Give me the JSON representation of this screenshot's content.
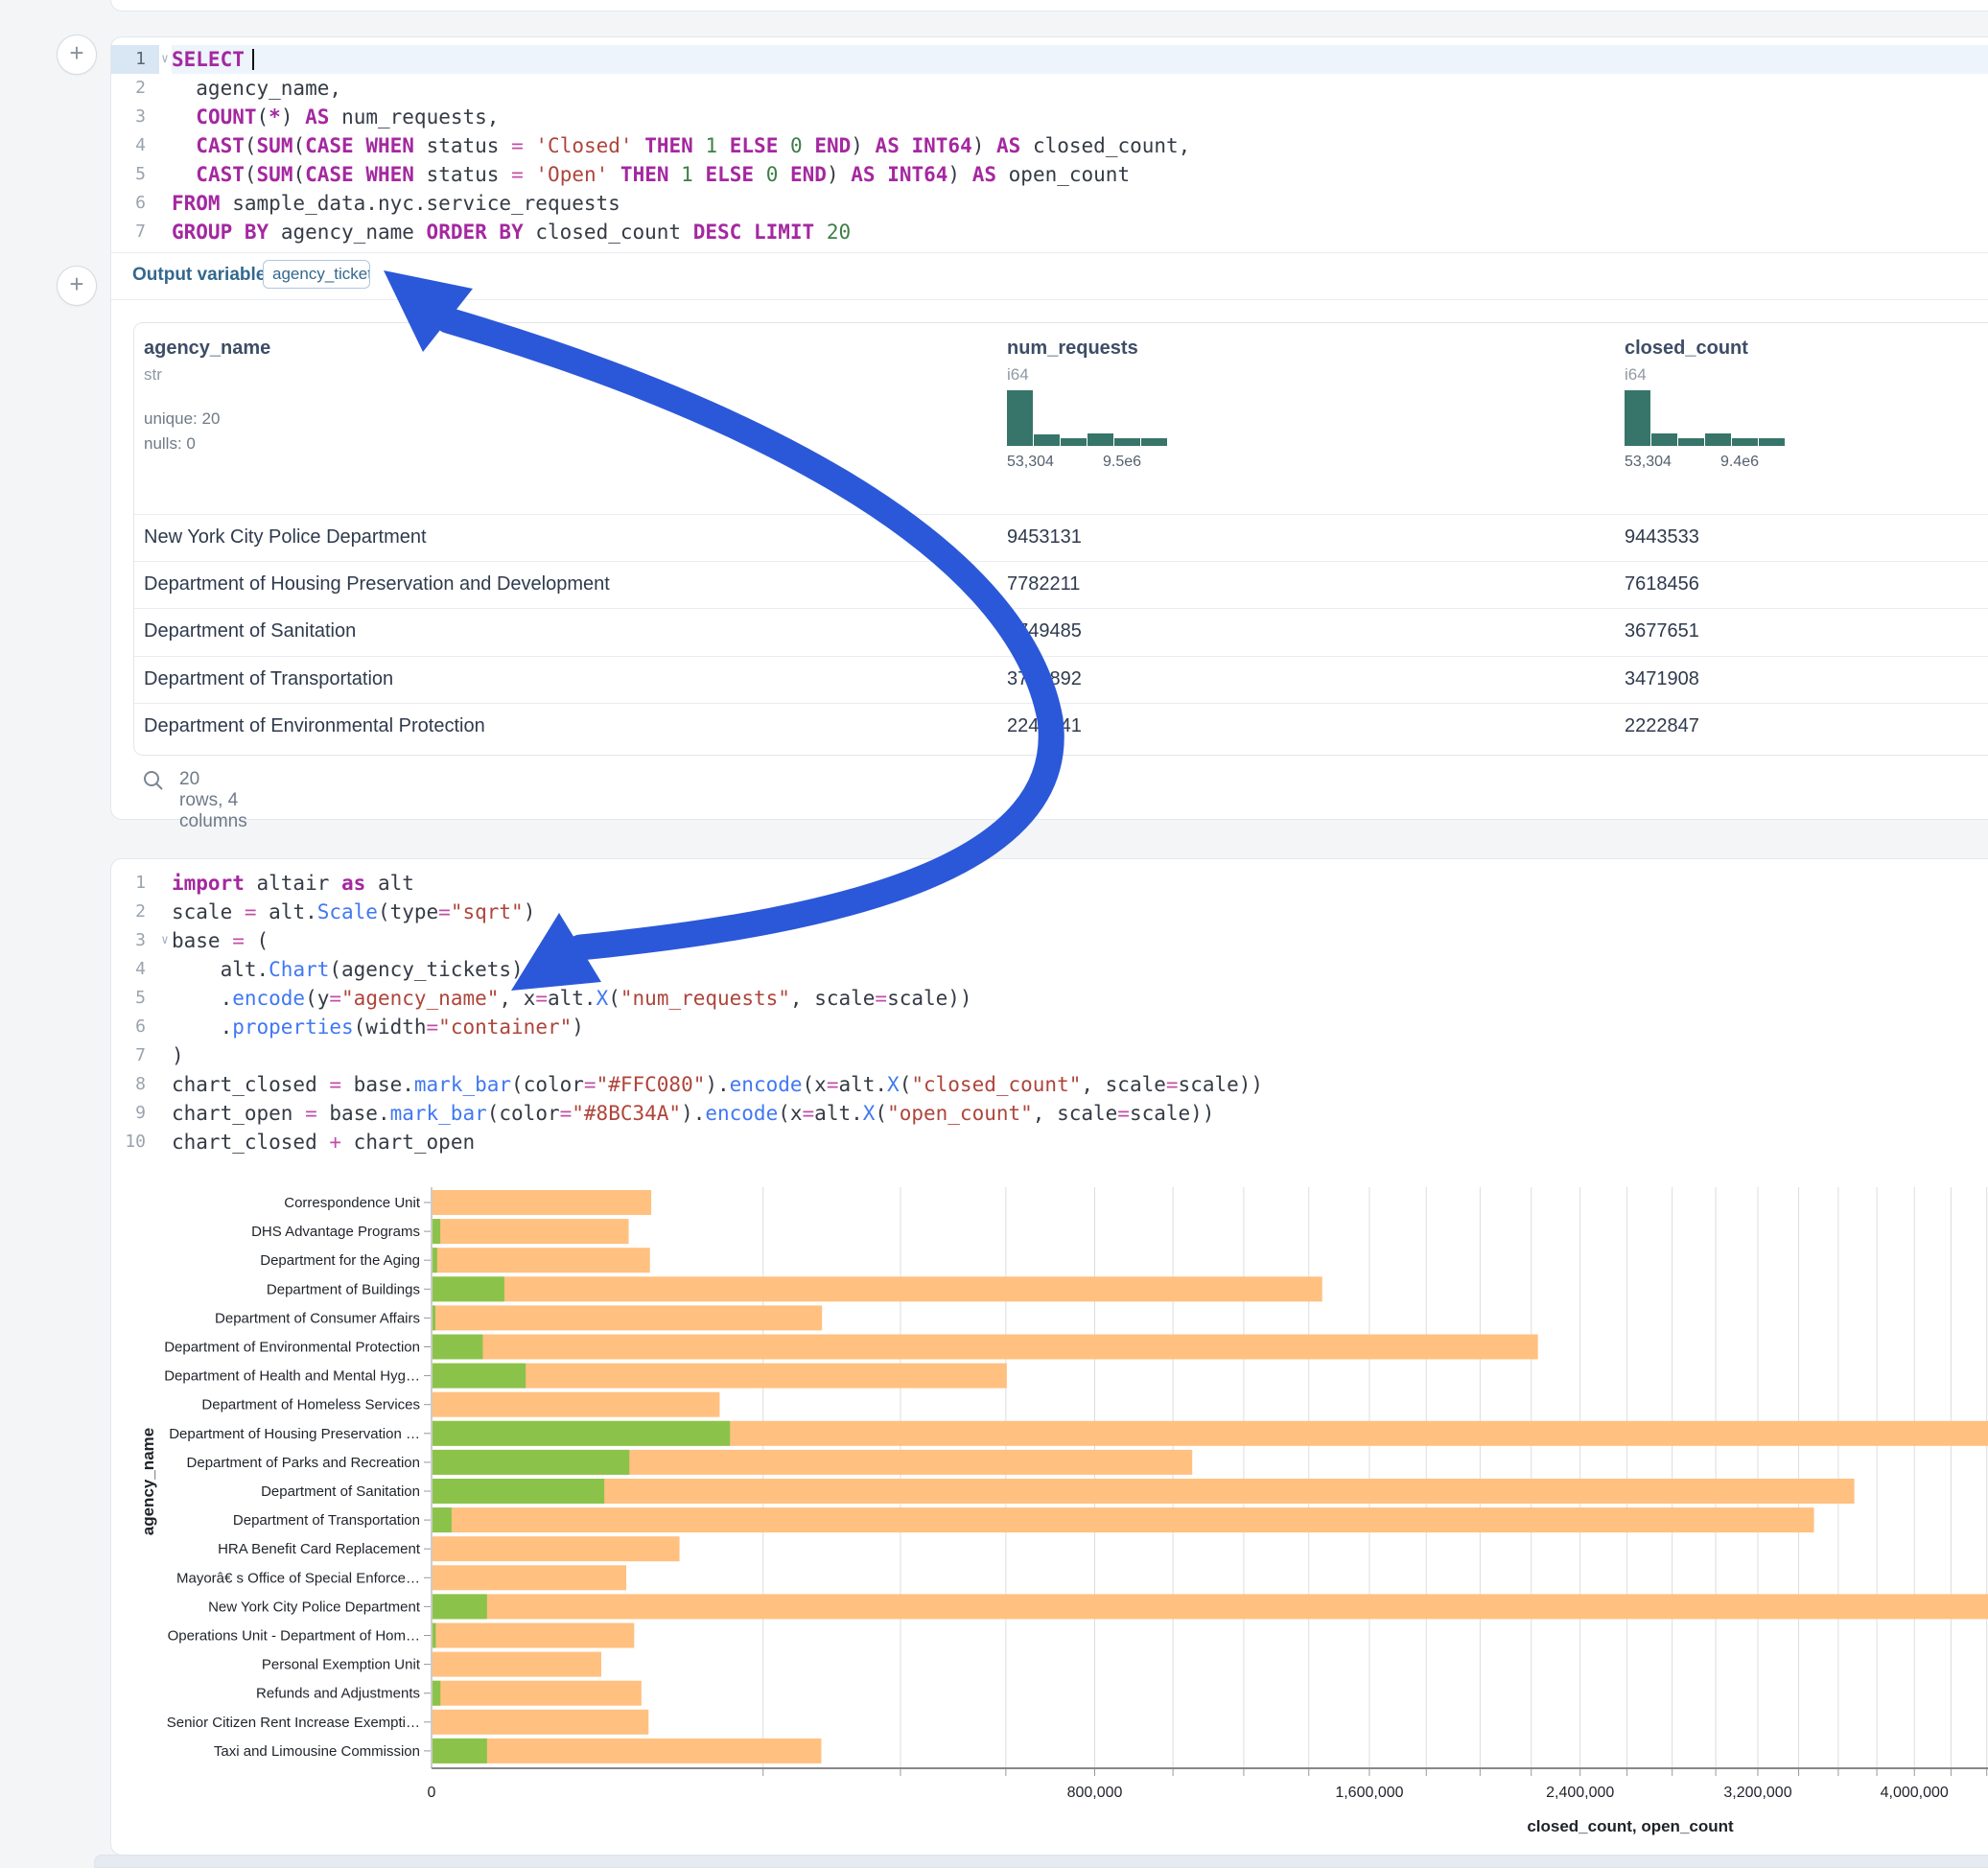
{
  "sql_cell": {
    "add_cell_plus": "+",
    "fold_chevron": "∨",
    "lines": [
      {
        "n": "1",
        "fold": true,
        "active": true,
        "cursor": true,
        "tokens": [
          [
            "kw",
            "SELECT"
          ]
        ]
      },
      {
        "n": "2",
        "tokens": [
          [
            "id",
            "  agency_name,"
          ]
        ]
      },
      {
        "n": "3",
        "tokens": [
          [
            "id",
            "  "
          ],
          [
            "kw",
            "COUNT"
          ],
          [
            "id",
            "("
          ],
          [
            "kw",
            "*"
          ],
          [
            "id",
            ") "
          ],
          [
            "kw",
            "AS"
          ],
          [
            "id",
            " num_requests,"
          ]
        ]
      },
      {
        "n": "4",
        "tokens": [
          [
            "id",
            "  "
          ],
          [
            "kw",
            "CAST"
          ],
          [
            "id",
            "("
          ],
          [
            "kw",
            "SUM"
          ],
          [
            "id",
            "("
          ],
          [
            "kw",
            "CASE"
          ],
          [
            "id",
            " "
          ],
          [
            "kw",
            "WHEN"
          ],
          [
            "id",
            " status "
          ],
          [
            "op",
            "="
          ],
          [
            "id",
            " "
          ],
          [
            "str",
            "'Closed'"
          ],
          [
            "id",
            " "
          ],
          [
            "kw",
            "THEN"
          ],
          [
            "id",
            " "
          ],
          [
            "num",
            "1"
          ],
          [
            "id",
            " "
          ],
          [
            "kw",
            "ELSE"
          ],
          [
            "id",
            " "
          ],
          [
            "num",
            "0"
          ],
          [
            "id",
            " "
          ],
          [
            "kw",
            "END"
          ],
          [
            "id",
            ") "
          ],
          [
            "kw",
            "AS"
          ],
          [
            "id",
            " "
          ],
          [
            "kw",
            "INT64"
          ],
          [
            "id",
            ") "
          ],
          [
            "kw",
            "AS"
          ],
          [
            "id",
            " closed_count,"
          ]
        ]
      },
      {
        "n": "5",
        "tokens": [
          [
            "id",
            "  "
          ],
          [
            "kw",
            "CAST"
          ],
          [
            "id",
            "("
          ],
          [
            "kw",
            "SUM"
          ],
          [
            "id",
            "("
          ],
          [
            "kw",
            "CASE"
          ],
          [
            "id",
            " "
          ],
          [
            "kw",
            "WHEN"
          ],
          [
            "id",
            " status "
          ],
          [
            "op",
            "="
          ],
          [
            "id",
            " "
          ],
          [
            "str",
            "'Open'"
          ],
          [
            "id",
            " "
          ],
          [
            "kw",
            "THEN"
          ],
          [
            "id",
            " "
          ],
          [
            "num",
            "1"
          ],
          [
            "id",
            " "
          ],
          [
            "kw",
            "ELSE"
          ],
          [
            "id",
            " "
          ],
          [
            "num",
            "0"
          ],
          [
            "id",
            " "
          ],
          [
            "kw",
            "END"
          ],
          [
            "id",
            ") "
          ],
          [
            "kw",
            "AS"
          ],
          [
            "id",
            " "
          ],
          [
            "kw",
            "INT64"
          ],
          [
            "id",
            ") "
          ],
          [
            "kw",
            "AS"
          ],
          [
            "id",
            " open_count"
          ]
        ]
      },
      {
        "n": "6",
        "tokens": [
          [
            "kw",
            "FROM"
          ],
          [
            "id",
            " sample_data.nyc.service_requests"
          ]
        ]
      },
      {
        "n": "7",
        "tokens": [
          [
            "kw",
            "GROUP"
          ],
          [
            "id",
            " "
          ],
          [
            "kw",
            "BY"
          ],
          [
            "id",
            " agency_name "
          ],
          [
            "kw",
            "ORDER"
          ],
          [
            "id",
            " "
          ],
          [
            "kw",
            "BY"
          ],
          [
            "id",
            " closed_count "
          ],
          [
            "kw",
            "DESC"
          ],
          [
            "id",
            " "
          ],
          [
            "kw",
            "LIMIT"
          ],
          [
            "id",
            " "
          ],
          [
            "num",
            "20"
          ]
        ]
      }
    ],
    "output_variable_label": "Output variable:",
    "output_variable_value": "agency_tickets"
  },
  "dataframe": {
    "columns": [
      {
        "name": "agency_name",
        "dtype": "str",
        "stats": [
          "unique: 20",
          "nulls: 0"
        ]
      },
      {
        "name": "num_requests",
        "dtype": "i64",
        "hist": {
          "bins": [
            1,
            0.21,
            0.14,
            0.23,
            0.14,
            0.14
          ],
          "min_label": "53,304",
          "max_label": "9.5e6"
        }
      },
      {
        "name": "closed_count",
        "dtype": "i64",
        "hist": {
          "bins": [
            1,
            0.22,
            0.13,
            0.22,
            0.13,
            0.13
          ],
          "min_label": "53,304",
          "max_label": "9.4e6"
        }
      }
    ],
    "rows": [
      [
        "New York City Police Department",
        "9453131",
        "9443533"
      ],
      [
        "Department of Housing Preservation and Development",
        "7782211",
        "7618456"
      ],
      [
        "Department of Sanitation",
        "3749485",
        "3677651"
      ],
      [
        "Department of Transportation",
        "3774892",
        "3471908"
      ],
      [
        "Department of Environmental Protection",
        "2240041",
        "2222847"
      ]
    ],
    "footer": "20 rows, 4 columns"
  },
  "python_cell": {
    "lines": [
      {
        "n": "1",
        "tokens": [
          [
            "kw",
            "import"
          ],
          [
            "id",
            " altair "
          ],
          [
            "kw",
            "as"
          ],
          [
            "id",
            " alt"
          ]
        ]
      },
      {
        "n": "2",
        "tokens": [
          [
            "id",
            "scale "
          ],
          [
            "op",
            "="
          ],
          [
            "id",
            " alt."
          ],
          [
            "fn",
            "Scale"
          ],
          [
            "id",
            "(type"
          ],
          [
            "op",
            "="
          ],
          [
            "str",
            "\"sqrt\""
          ],
          [
            "id",
            ")"
          ]
        ]
      },
      {
        "n": "3",
        "fold": true,
        "tokens": [
          [
            "id",
            "base "
          ],
          [
            "op",
            "="
          ],
          [
            "id",
            " ("
          ]
        ]
      },
      {
        "n": "4",
        "tokens": [
          [
            "id",
            "    alt."
          ],
          [
            "fn",
            "Chart"
          ],
          [
            "id",
            "(agency_tickets)"
          ]
        ]
      },
      {
        "n": "5",
        "tokens": [
          [
            "id",
            "    ."
          ],
          [
            "fn",
            "encode"
          ],
          [
            "id",
            "(y"
          ],
          [
            "op",
            "="
          ],
          [
            "str",
            "\"agency_name\""
          ],
          [
            "id",
            ", x"
          ],
          [
            "op",
            "="
          ],
          [
            "id",
            "alt."
          ],
          [
            "fn",
            "X"
          ],
          [
            "id",
            "("
          ],
          [
            "str",
            "\"num_requests\""
          ],
          [
            "id",
            ", scale"
          ],
          [
            "op",
            "="
          ],
          [
            "id",
            "scale))"
          ]
        ]
      },
      {
        "n": "6",
        "tokens": [
          [
            "id",
            "    ."
          ],
          [
            "fn",
            "properties"
          ],
          [
            "id",
            "(width"
          ],
          [
            "op",
            "="
          ],
          [
            "str",
            "\"container\""
          ],
          [
            "id",
            ")"
          ]
        ]
      },
      {
        "n": "7",
        "tokens": [
          [
            "id",
            ")"
          ]
        ]
      },
      {
        "n": "8",
        "tokens": [
          [
            "id",
            "chart_closed "
          ],
          [
            "op",
            "="
          ],
          [
            "id",
            " base."
          ],
          [
            "fn",
            "mark_bar"
          ],
          [
            "id",
            "(color"
          ],
          [
            "op",
            "="
          ],
          [
            "str",
            "\"#FFC080\""
          ],
          [
            "id",
            ")."
          ],
          [
            "fn",
            "encode"
          ],
          [
            "id",
            "(x"
          ],
          [
            "op",
            "="
          ],
          [
            "id",
            "alt."
          ],
          [
            "fn",
            "X"
          ],
          [
            "id",
            "("
          ],
          [
            "str",
            "\"closed_count\""
          ],
          [
            "id",
            ", scale"
          ],
          [
            "op",
            "="
          ],
          [
            "id",
            "scale))"
          ]
        ]
      },
      {
        "n": "9",
        "tokens": [
          [
            "id",
            "chart_open "
          ],
          [
            "op",
            "="
          ],
          [
            "id",
            " base."
          ],
          [
            "fn",
            "mark_bar"
          ],
          [
            "id",
            "(color"
          ],
          [
            "op",
            "="
          ],
          [
            "str",
            "\"#8BC34A\""
          ],
          [
            "id",
            ")."
          ],
          [
            "fn",
            "encode"
          ],
          [
            "id",
            "(x"
          ],
          [
            "op",
            "="
          ],
          [
            "id",
            "alt."
          ],
          [
            "fn",
            "X"
          ],
          [
            "id",
            "("
          ],
          [
            "str",
            "\"open_count\""
          ],
          [
            "id",
            ", scale"
          ],
          [
            "op",
            "="
          ],
          [
            "id",
            "scale))"
          ]
        ]
      },
      {
        "n": "10",
        "tokens": [
          [
            "id",
            "chart_closed "
          ],
          [
            "op",
            "+"
          ],
          [
            "id",
            " chart_open"
          ]
        ]
      }
    ]
  },
  "chart_data": {
    "type": "bar",
    "orientation": "horizontal",
    "scale_type": "sqrt",
    "xlabel": "closed_count, open_count",
    "ylabel": "agency_name",
    "x_ticks": [
      0,
      800000,
      1600000,
      2400000,
      3200000,
      4000000
    ],
    "x_tick_labels": [
      "0",
      "800,000",
      "1,600,000",
      "2,400,000",
      "3,200,000",
      "4,000,000"
    ],
    "grid_interval": 200000,
    "x_max_visible": 4400000,
    "grid": true,
    "categories": [
      "Correspondence Unit",
      "DHS Advantage Programs",
      "Department for the Aging",
      "Department of Buildings",
      "Department of Consumer Affairs",
      "Department of Environmental Protection",
      "Department of Health and Mental Hyg…",
      "Department of Homeless Services",
      "Department of Housing Preservation …",
      "Department of Parks and Recreation",
      "Department of Sanitation",
      "Department of Transportation",
      "HRA Benefit Card Replacement",
      "Mayorâ€ s Office of Special Enforce…",
      "New York City Police Department",
      "Operations Unit - Department of Hom…",
      "Personal Exemption Unit",
      "Refunds and Adjustments",
      "Senior Citizen Rent Increase Exempti…",
      "Taxi and Limousine Commission"
    ],
    "series": [
      {
        "name": "closed_count",
        "color": "#FFC080",
        "values": [
          87000,
          70000,
          86000,
          1440000,
          276000,
          2222847,
          600000,
          150000,
          7618456,
          1050000,
          3677651,
          3471908,
          111000,
          68300,
          9443533,
          74000,
          51800,
          79400,
          84900,
          275000
        ]
      },
      {
        "name": "open_count",
        "color": "#8BC34A",
        "values": [
          0,
          110,
          40,
          9400,
          15,
          4600,
          15800,
          0,
          161000,
          70500,
          53700,
          660,
          0,
          0,
          5400,
          20,
          0,
          115,
          0,
          5400
        ]
      }
    ]
  },
  "annotation": {
    "arrow_color": "#2B58D9"
  },
  "colors": {
    "hist_bar": "#37756A",
    "closed_bar": "#FFC080",
    "open_bar": "#8BC34A"
  }
}
